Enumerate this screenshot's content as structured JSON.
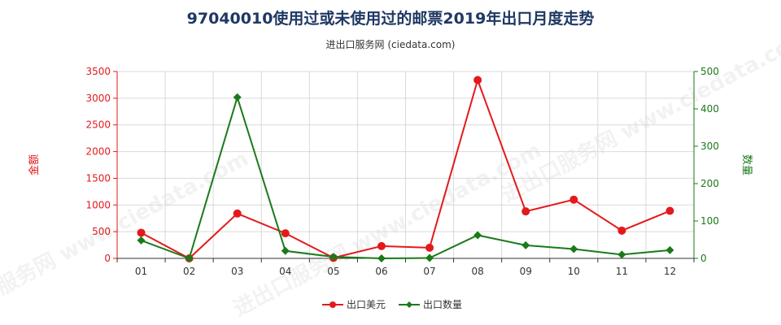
{
  "title": "97040010使用过或未使用过的邮票2019年出口月度走势",
  "subtitle": "进出口服务网 (ciedata.com)",
  "watermark": "进出口服务网 www.ciedata.com",
  "chart_data": {
    "type": "line",
    "categories": [
      "01",
      "02",
      "03",
      "04",
      "05",
      "06",
      "07",
      "08",
      "09",
      "10",
      "11",
      "12"
    ],
    "series": [
      {
        "name": "出口美元",
        "axis": "left",
        "color": "#e31a1c",
        "values": [
          480,
          0,
          840,
          470,
          10,
          230,
          200,
          3340,
          880,
          1100,
          520,
          890
        ]
      },
      {
        "name": "出口数量",
        "axis": "right",
        "color": "#1a7a1a",
        "values": [
          48,
          0,
          431,
          20,
          4,
          0,
          1,
          62,
          35,
          25,
          10,
          22
        ]
      }
    ],
    "y_left": {
      "label": "金额",
      "ylim": [
        0,
        3500
      ],
      "ticks": [
        "0",
        "500",
        "1000",
        "1500",
        "2000",
        "2500",
        "3000",
        "3500"
      ]
    },
    "y_right": {
      "label": "数量",
      "ylim": [
        0,
        500
      ],
      "ticks": [
        "0",
        "100",
        "200",
        "300",
        "400",
        "500"
      ]
    },
    "grid": true,
    "legend_position": "bottom-center"
  }
}
